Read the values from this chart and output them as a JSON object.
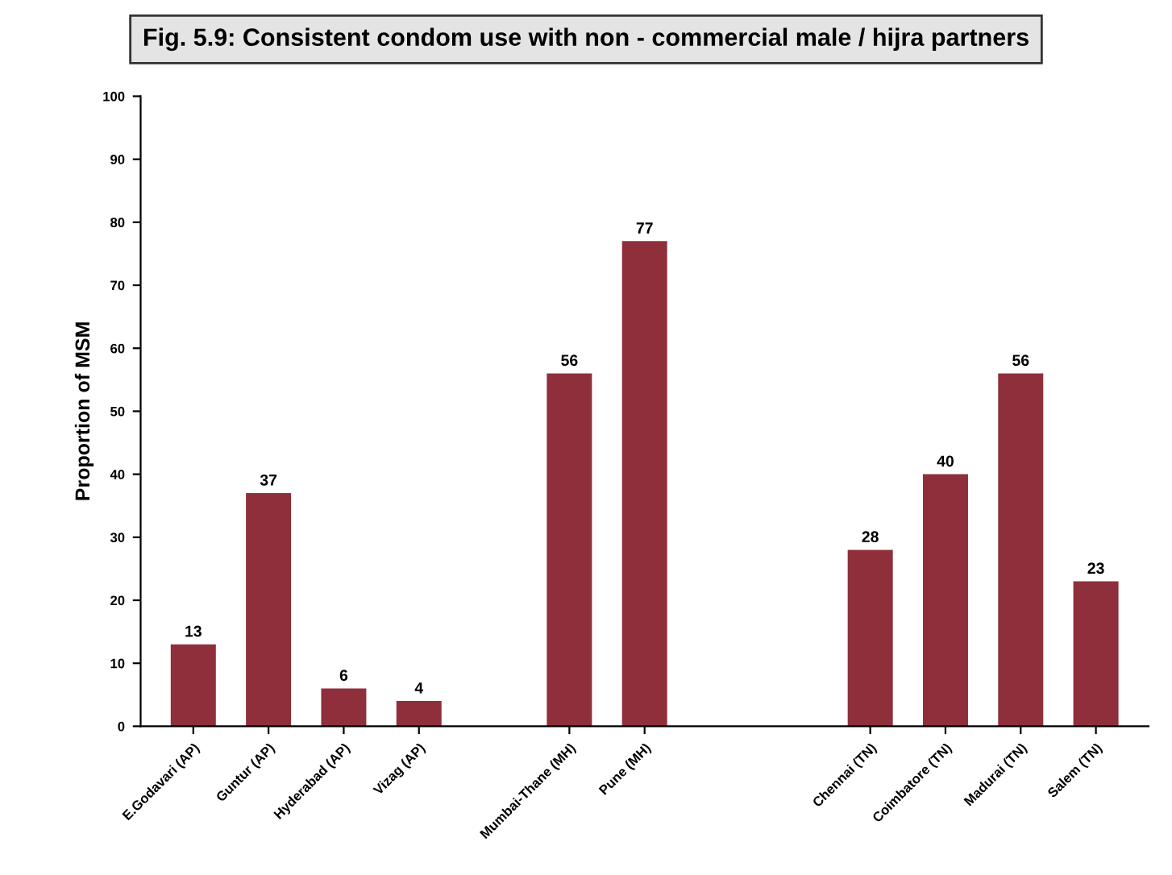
{
  "chart_data": {
    "type": "bar",
    "title": "Fig. 5.9: Consistent condom use with non - commercial male / hijra partners",
    "ylabel": "Proportion of MSM",
    "categories": [
      "E.Godavari (AP)",
      "Guntur (AP)",
      "Hyderabad (AP)",
      "Vizag (AP)",
      null,
      "Mumbai-Thane (MH)",
      "Pune (MH)",
      null,
      null,
      "Chennai (TN)",
      "Coimbatore (TN)",
      "Madurai (TN)",
      "Salem (TN)"
    ],
    "values": [
      13,
      37,
      6,
      4,
      null,
      56,
      77,
      null,
      null,
      28,
      40,
      56,
      23
    ],
    "color": "#8e2f3b",
    "ylim": [
      0,
      100
    ],
    "yticks": [
      0,
      10,
      20,
      30,
      40,
      50,
      60,
      70,
      80,
      90,
      100
    ],
    "data_labels": true,
    "grid": false,
    "legend": false
  }
}
